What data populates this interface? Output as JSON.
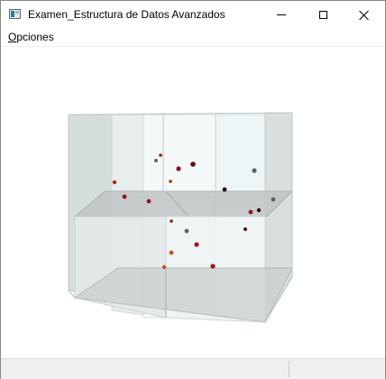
{
  "window": {
    "title": "Examen_Estructura de Datos Avanzados",
    "icon": "app-window-icon",
    "controls": [
      "minimize-icon",
      "maximize-icon",
      "close-icon"
    ]
  },
  "menubar": {
    "items": [
      {
        "label_first": "O",
        "label_rest": "pciones"
      }
    ]
  },
  "scene": {
    "description_colors": {
      "cube_face": "#dfe6e6",
      "cube_edge": "#c9d2d2",
      "divider_plane": "#b9bfbf",
      "point_red": "#a01818",
      "point_dark": "#2a0a12",
      "point_gray": "#5a6468",
      "point_orange": "#c9501a"
    }
  },
  "statusbar": {
    "left_text": "",
    "right_text": ""
  }
}
